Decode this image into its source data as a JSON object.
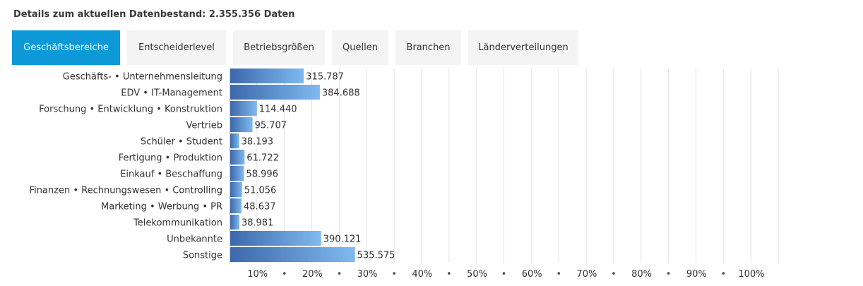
{
  "header": {
    "title": "Details zum aktuellen Datenbestand: 2.355.356 Daten"
  },
  "tabs": [
    {
      "label": "Geschäftsbereiche",
      "active": true
    },
    {
      "label": "Entscheiderlevel",
      "active": false
    },
    {
      "label": "Betriebsgrößen",
      "active": false
    },
    {
      "label": "Quellen",
      "active": false
    },
    {
      "label": "Branchen",
      "active": false
    },
    {
      "label": "Länderverteilungen",
      "active": false
    }
  ],
  "colors": {
    "accent": "#0d99d8",
    "tab_bg": "#f4f4f4",
    "bar_dark": "#3c68aa",
    "bar_light": "#7fbaf0",
    "grid": "#e3e3e3"
  },
  "chart_data": {
    "type": "bar",
    "orientation": "horizontal",
    "title": "",
    "xlabel": "",
    "ylabel": "",
    "xlim": [
      0,
      2355356
    ],
    "grid": true,
    "categories": [
      "Geschäfts- • Unternehmensleitung",
      "EDV • IT-Management",
      "Forschung • Entwicklung • Konstruktion",
      "Vertrieb",
      "Schüler • Student",
      "Fertigung • Produktion",
      "Einkauf • Beschaffung",
      "Finanzen • Rechnungswesen • Controlling",
      "Marketing • Werbung • PR",
      "Telekommunikation",
      "Unbekannte",
      "Sonstige"
    ],
    "values": [
      315787,
      384688,
      114440,
      95707,
      38193,
      61722,
      58996,
      51056,
      48637,
      38981,
      390121,
      535575
    ],
    "value_labels": [
      "315.787",
      "384.688",
      "114.440",
      "95.707",
      "38.193",
      "61.722",
      "58.996",
      "51.056",
      "48.637",
      "38.981",
      "390.121",
      "535.575"
    ],
    "x_ticks": [
      "10%",
      "20%",
      "30%",
      "40%",
      "50%",
      "60%",
      "70%",
      "80%",
      "90%",
      "100%"
    ],
    "tick_separator": "•"
  }
}
